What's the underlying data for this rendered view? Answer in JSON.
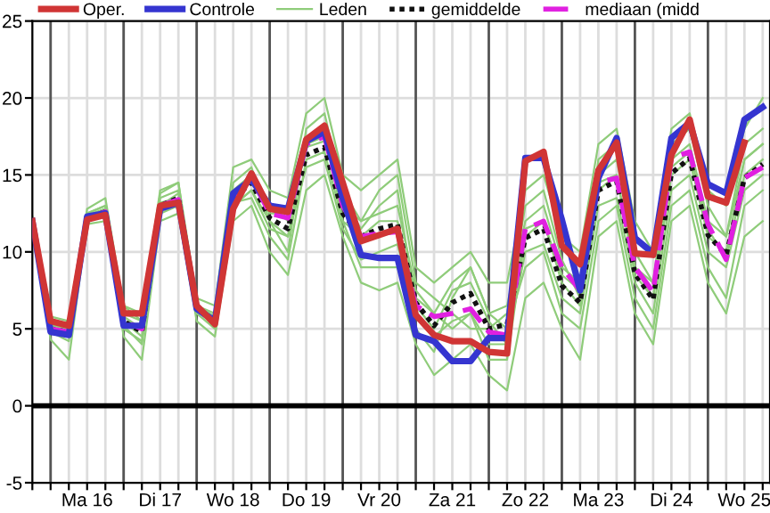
{
  "chart_data": {
    "type": "line",
    "categories": [
      null,
      null,
      null,
      "Ma 16",
      null,
      null,
      null,
      "Di 17",
      null,
      null,
      null,
      "Wo 18",
      null,
      null,
      null,
      "Do 19",
      null,
      null,
      null,
      "Vr 20",
      null,
      null,
      null,
      "Za 21",
      null,
      null,
      null,
      "Zo 22",
      null,
      null,
      null,
      "Ma 23",
      null,
      null,
      null,
      "Di 24",
      null,
      null,
      null,
      "Wo 25",
      null
    ],
    "series": [
      {
        "name": "Leden",
        "color": "#8fcc7a",
        "values": [
          12.3,
          5.8,
          5.5,
          12.8,
          13.5,
          6.5,
          6.0,
          14,
          14.5,
          7,
          6.5,
          15.5,
          16,
          14,
          13.5,
          19,
          20,
          15,
          14,
          15,
          16,
          9,
          8,
          9,
          10,
          8,
          8,
          14,
          15,
          11,
          10,
          17,
          18,
          12,
          10,
          18,
          19,
          14,
          13,
          18,
          20
        ]
      },
      {
        "color": "#8fcc7a",
        "values": [
          11.8,
          4.3,
          3.0,
          11.8,
          12,
          4.5,
          3,
          12,
          12.5,
          5.5,
          4.5,
          12,
          13,
          10,
          8.5,
          14,
          15,
          11,
          8,
          7.5,
          8,
          4,
          2,
          3,
          4,
          2,
          1,
          7,
          8,
          5,
          3,
          11,
          12,
          6,
          4,
          12,
          13,
          8,
          6,
          11,
          12
        ]
      },
      {
        "color": "#8fcc7a",
        "values": [
          12,
          5.2,
          5,
          12.5,
          13,
          6,
          5.5,
          13.5,
          14,
          6.5,
          6,
          14,
          15,
          13,
          12,
          17,
          17.5,
          13,
          12,
          12.5,
          13,
          7.5,
          6,
          8,
          9,
          6,
          6.5,
          12,
          13,
          9,
          8,
          15,
          16,
          10,
          8,
          16,
          17,
          12,
          11,
          16,
          17
        ]
      },
      {
        "color": "#8fcc7a",
        "values": [
          12,
          4.7,
          4.5,
          12,
          12.3,
          5,
          4.2,
          12.5,
          13,
          6,
          5,
          13,
          14,
          11.5,
          11,
          15.5,
          16,
          11.5,
          9.5,
          10,
          10.5,
          6,
          4.5,
          5.5,
          6,
          4,
          4,
          10,
          10.5,
          7,
          6,
          13,
          13.5,
          8,
          6,
          14,
          15,
          10,
          9,
          14,
          15
        ]
      },
      {
        "color": "#8fcc7a",
        "values": [
          12.1,
          5.5,
          5.2,
          12.5,
          13,
          6.5,
          5.5,
          13.8,
          14.5,
          6.5,
          5.8,
          14.5,
          15.5,
          12,
          10,
          18,
          19,
          14,
          12,
          14,
          15,
          8,
          7,
          6,
          5,
          5,
          6,
          13,
          14,
          9.5,
          7,
          16,
          17,
          9,
          8,
          17,
          18,
          13,
          11,
          17,
          18
        ]
      },
      {
        "color": "#8fcc7a",
        "values": [
          11.9,
          4.8,
          4.2,
          12.2,
          12.8,
          5.2,
          4,
          13,
          13.8,
          6.2,
          5.2,
          13.2,
          13.5,
          11,
          9.5,
          16,
          16.5,
          12,
          9,
          9,
          9,
          5,
          3.5,
          7,
          9,
          6,
          5,
          9,
          10,
          6,
          5,
          12,
          13,
          7,
          5,
          13,
          14,
          9,
          7,
          13,
          14
        ]
      },
      {
        "color": "#8fcc7a",
        "values": [
          12,
          5,
          4.5,
          12,
          12.5,
          5.5,
          4.5,
          13,
          13.2,
          6.2,
          5.3,
          13,
          14,
          12,
          11,
          17,
          18,
          12,
          11,
          12,
          12,
          7,
          6,
          5,
          6,
          3,
          3,
          11,
          12,
          8,
          6.5,
          14,
          15,
          9,
          7,
          15,
          16,
          11,
          10,
          16,
          17
        ]
      },
      {
        "color": "#8fcc7a",
        "values": [
          12.2,
          5.3,
          5,
          12.4,
          12.8,
          5.8,
          5,
          13.2,
          13.5,
          6.4,
          5.5,
          13.8,
          14.8,
          12.5,
          12.5,
          16.8,
          17.2,
          13.5,
          11.5,
          13,
          14,
          6.5,
          5,
          7.5,
          8,
          5.5,
          4,
          11.5,
          12,
          8.5,
          7.5,
          14.5,
          15,
          8.5,
          7,
          15.5,
          16.5,
          11.5,
          9.5,
          15,
          16
        ]
      },
      {
        "name": "gemiddelde",
        "color": "#111111",
        "line_style": "dotted",
        "values": [
          12,
          5,
          4.8,
          12.2,
          12.6,
          5.5,
          4.8,
          13,
          13.5,
          6.3,
          5.5,
          13.5,
          14.5,
          12.2,
          11.5,
          16.3,
          16.8,
          12.5,
          11,
          11.5,
          11.8,
          6.7,
          5.2,
          6.7,
          7.3,
          5.0,
          5.3,
          10.9,
          11.5,
          7.8,
          6.7,
          14.0,
          14.6,
          8.6,
          6.9,
          15.1,
          16.1,
          11.1,
          9.8,
          14.8,
          15.7
        ]
      },
      {
        "name": "mediaan (midd",
        "color": "#e020e0",
        "line_style": "dashed",
        "values": [
          12,
          5,
          4.8,
          12.2,
          12.6,
          5.5,
          5.0,
          13,
          13.4,
          6.3,
          5.5,
          13.6,
          14.8,
          12.5,
          12.2,
          17.0,
          17.5,
          13.0,
          11.0,
          11.2,
          11.3,
          6.5,
          5.8,
          6.0,
          6.3,
          4.8,
          4.6,
          11.5,
          12.0,
          9.0,
          7.5,
          14.5,
          14.8,
          9.0,
          7.4,
          16.1,
          16.5,
          11.8,
          9.5,
          14.8,
          15.5
        ]
      },
      {
        "name": "Controle",
        "color": "#3535d0",
        "values": [
          12,
          4.8,
          4.6,
          12.3,
          12.5,
          5.2,
          5.2,
          12.8,
          13.2,
          6.3,
          5.5,
          13.8,
          14.7,
          13.0,
          12.8,
          17.2,
          17.8,
          13.5,
          9.8,
          9.6,
          9.6,
          4.6,
          4.2,
          2.9,
          2.9,
          4.4,
          4.4,
          16.1,
          16.1,
          12.1,
          7.5,
          14.8,
          17.4,
          10.9,
          9.9,
          17.4,
          18.4,
          14.4,
          13.8,
          18.6,
          19.4
        ]
      },
      {
        "name": "Oper.",
        "color": "#d03535",
        "values": [
          12,
          5.5,
          5.2,
          12.1,
          12.4,
          6.0,
          6.0,
          13.0,
          13.2,
          6.5,
          5.3,
          12.8,
          15.1,
          12.8,
          12.6,
          17.3,
          18.2,
          14.5,
          10.7,
          11.1,
          11.5,
          5.9,
          4.6,
          4.2,
          4.2,
          3.5,
          3.4,
          15.9,
          16.5,
          10.4,
          9.2,
          15.3,
          17.1,
          9.9,
          9.8,
          16.3,
          18.6,
          13.6,
          13.2,
          17.1,
          null
        ]
      }
    ],
    "ylim": [
      -5,
      25
    ],
    "yticks": [
      -5,
      0,
      5,
      10,
      15,
      20,
      25
    ],
    "ref_lines": [
      {
        "axis": "y",
        "value": 0,
        "color": "#000000"
      }
    ],
    "grid": true,
    "legend": "top",
    "marker": "none"
  }
}
